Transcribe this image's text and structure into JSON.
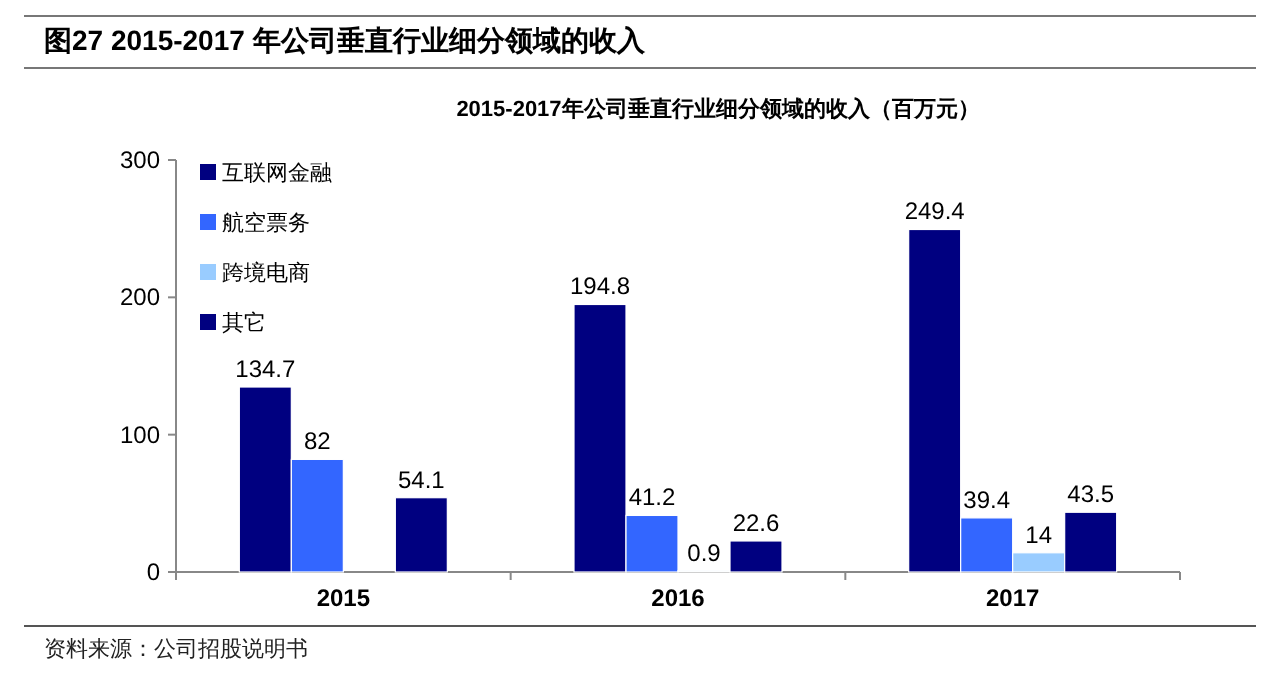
{
  "chart_data": {
    "type": "bar",
    "title": "图27 2015-2017 年公司垂直行业细分领域的收入",
    "subtitle": "2015-2017年公司垂直行业细分领域的收入（百万元）",
    "annotations": [
      "资料来源：公司招股说明书"
    ],
    "categories": [
      "2015",
      "2016",
      "2017"
    ],
    "series": [
      {
        "name": "互联网金融",
        "color": "#000080",
        "values": [
          134.7,
          194.8,
          249.4
        ]
      },
      {
        "name": "航空票务",
        "color": "#3366ff",
        "values": [
          82,
          41.2,
          39.4
        ]
      },
      {
        "name": "跨境电商",
        "color": "#99ccff",
        "values": [
          null,
          0.9,
          14
        ]
      },
      {
        "name": "其它",
        "color": "#000080",
        "values": [
          54.1,
          22.6,
          43.5
        ]
      }
    ],
    "ylim": [
      0,
      300
    ],
    "yticks": [
      0,
      100,
      200,
      300
    ],
    "data_labels": true,
    "legend": "top left",
    "grid": false
  }
}
